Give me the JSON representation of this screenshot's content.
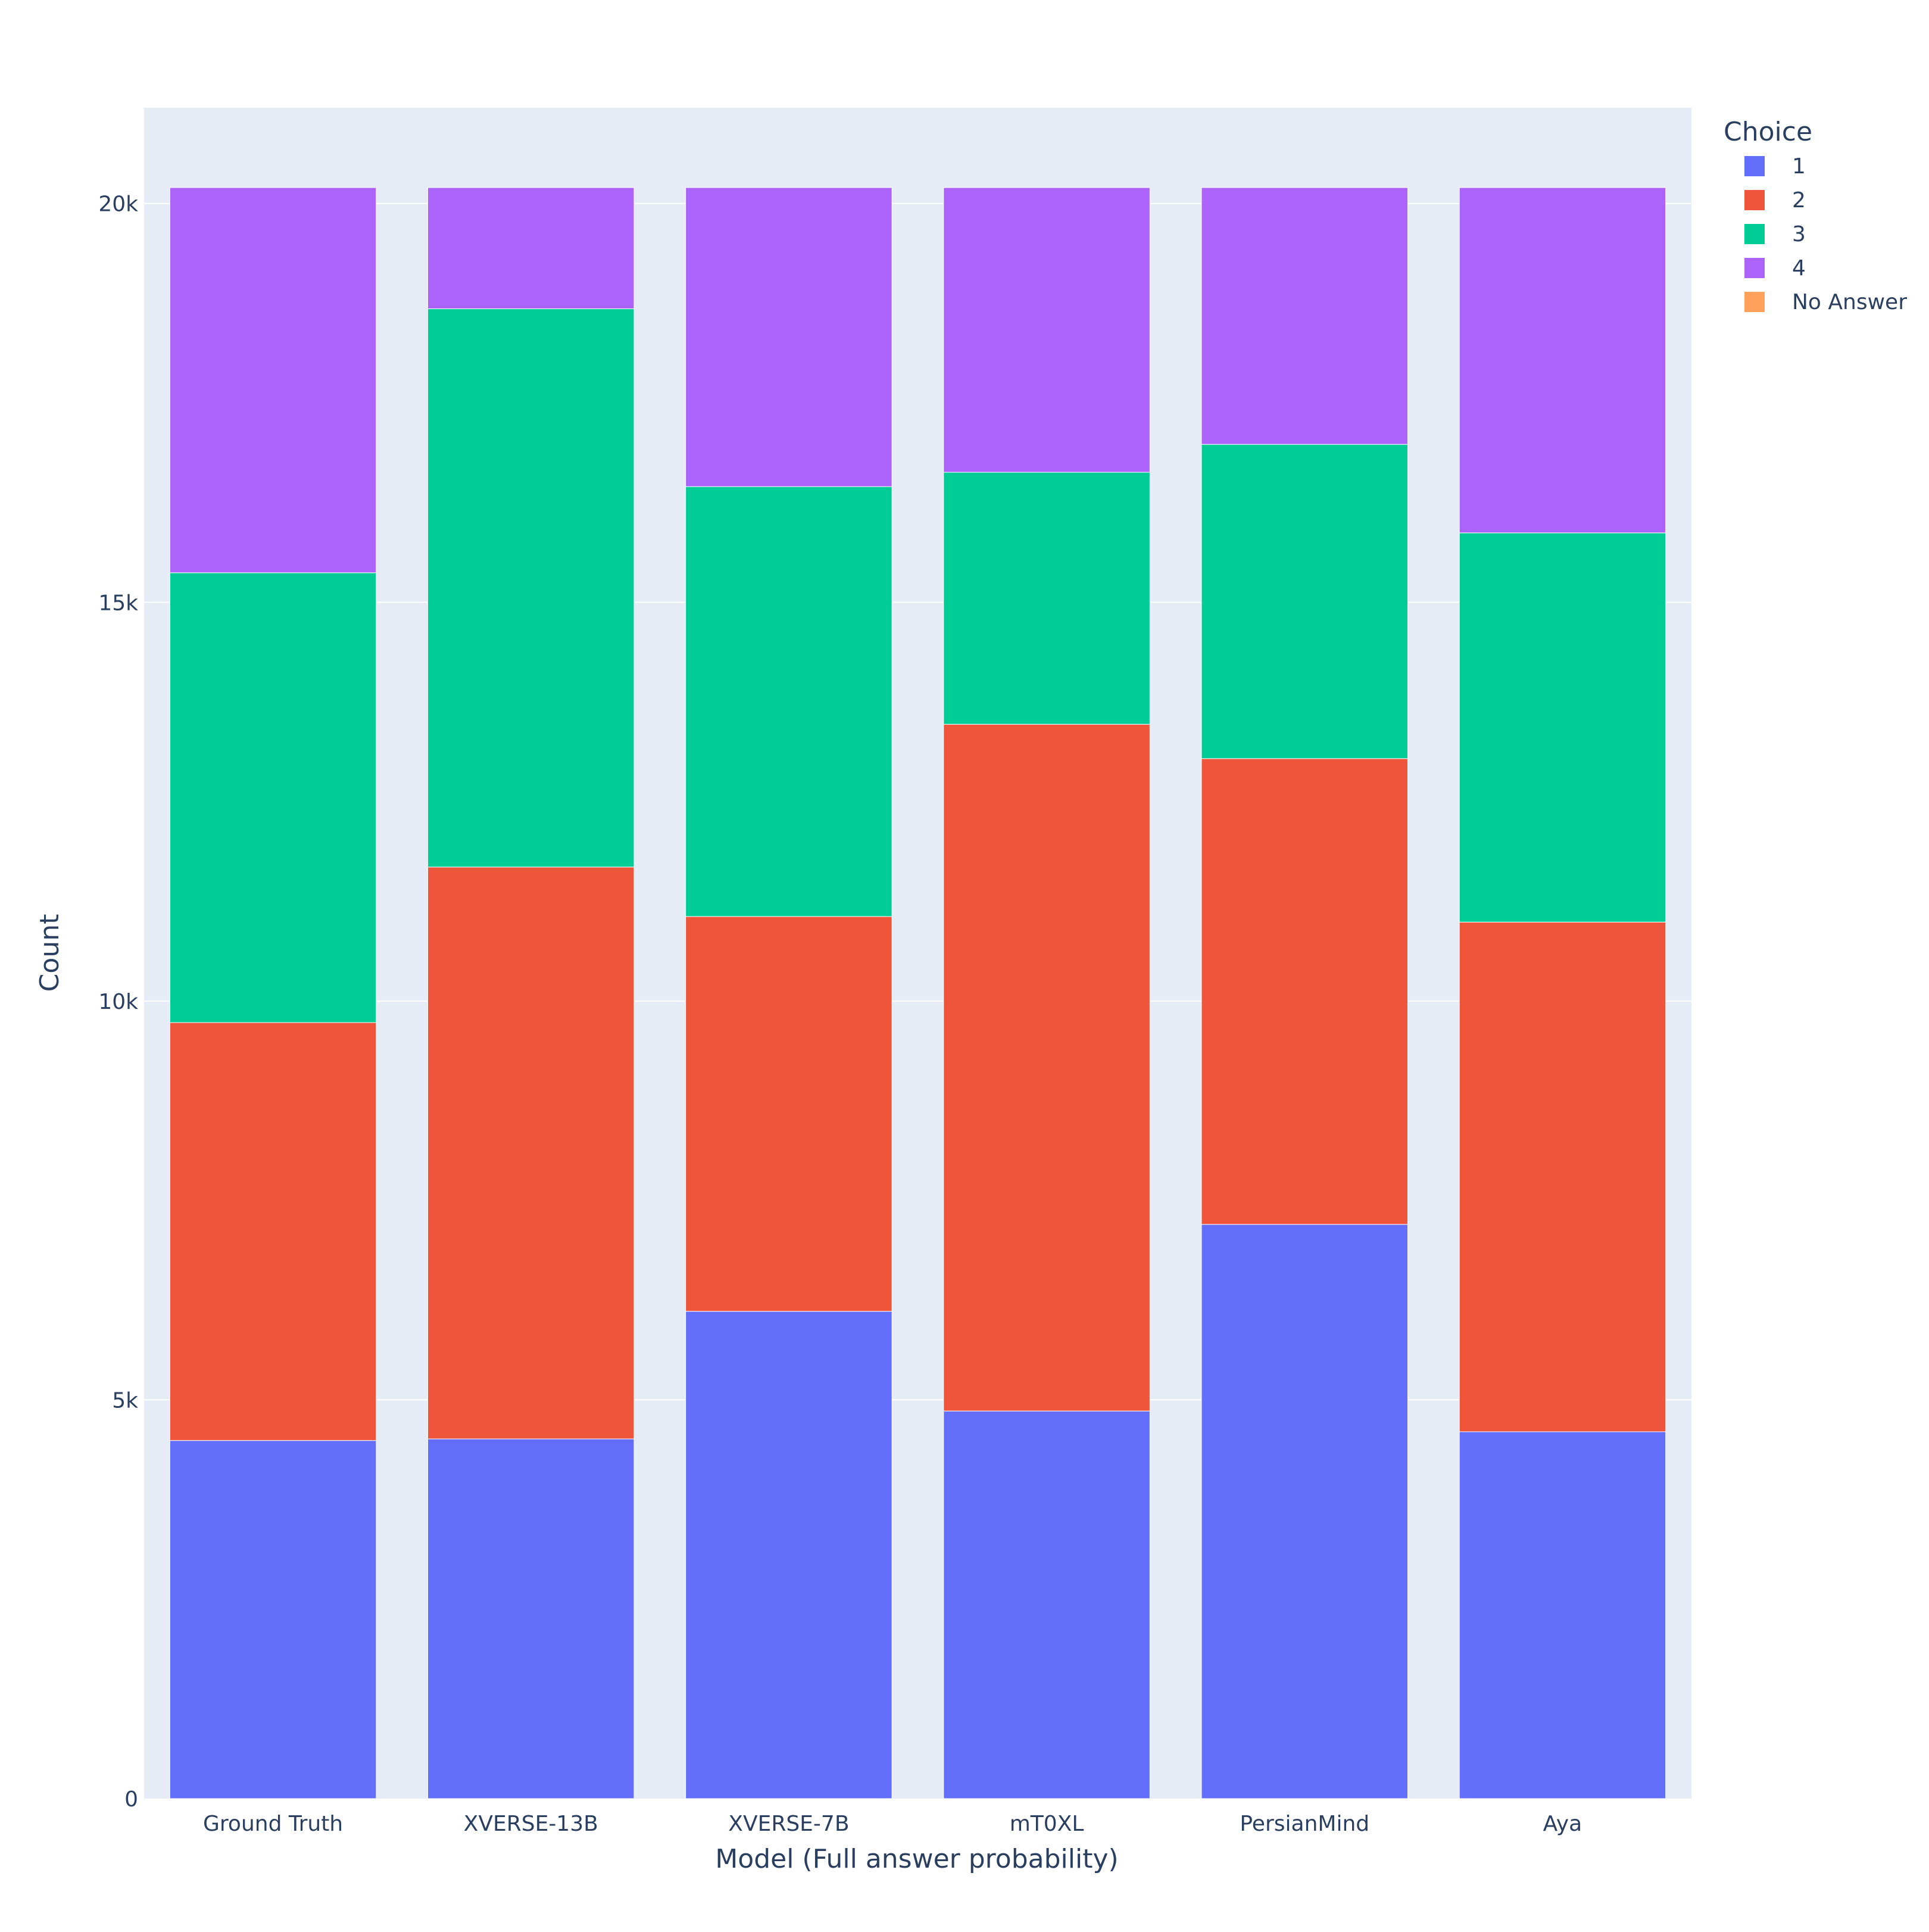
{
  "chart_data": {
    "type": "bar",
    "barmode": "stack",
    "title": "",
    "xlabel": "Model (Full answer probability)",
    "ylabel": "Count",
    "ylim": [
      0,
      21200
    ],
    "yticks": [
      0,
      5000,
      10000,
      15000,
      20000
    ],
    "ytick_labels": [
      "0",
      "5k",
      "10k",
      "15k",
      "20k"
    ],
    "grid": true,
    "legend_title": "Choice",
    "legend_position": "top-right",
    "categories": [
      "Ground Truth",
      "XVERSE-13B",
      "XVERSE-7B",
      "mT0XL",
      "PersianMind",
      "Aya"
    ],
    "series": [
      {
        "name": "1",
        "color": "#636efa",
        "values": [
          4490,
          4510,
          6110,
          4860,
          7200,
          4600
        ]
      },
      {
        "name": "2",
        "color": "#ef553b",
        "values": [
          5240,
          7170,
          4950,
          8610,
          5840,
          6390
        ]
      },
      {
        "name": "3",
        "color": "#00cc96",
        "values": [
          5640,
          7000,
          5390,
          3160,
          3940,
          4880
        ]
      },
      {
        "name": "4",
        "color": "#ab63fa",
        "values": [
          4830,
          1520,
          3750,
          3570,
          3220,
          4330
        ]
      },
      {
        "name": "No Answer",
        "color": "#ffa15a",
        "values": [
          0,
          0,
          0,
          0,
          0,
          0
        ]
      }
    ]
  },
  "style": {
    "plot_bg": "#e5ecf6",
    "paper_bg": "#ffffff",
    "grid_color": "#ffffff",
    "text_color": "#2a3f5f"
  }
}
